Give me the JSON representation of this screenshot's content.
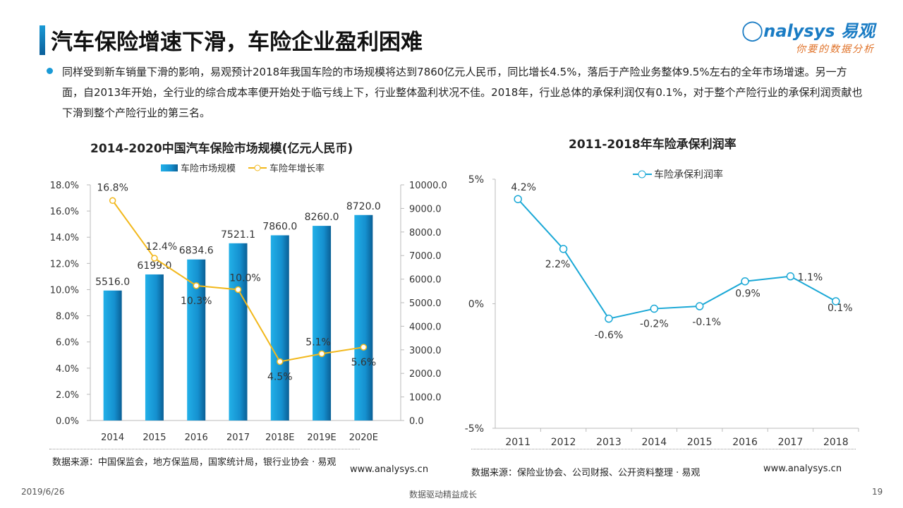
{
  "header": {
    "title": "汽车保险增速下滑，车险企业盈利困难",
    "logo_text": "nalysys 易观",
    "logo_slogan": "你要的数据分析",
    "logo_brand_color": "#1a7cc4"
  },
  "body_text": "同样受到新车销量下滑的影响，易观预计2018年我国车险的市场规模将达到7860亿元人民币，同比增长4.5%，落后于产险业务整体9.5%左右的全年市场增速。另一方面，自2013年开始，全行业的综合成本率便开始处于临亏线上下，行业整体盈利状况不佳。2018年，行业总体的承保利润仅有0.1%，对于整个产险行业的承保利润贡献也下滑到整个产险行业的第三名。",
  "chart_data": [
    {
      "type": "bar+line",
      "title": "2014-2020中国汽车保险市场规模(亿元人民币)",
      "categories": [
        "2014",
        "2015",
        "2016",
        "2017",
        "2018E",
        "2019E",
        "2020E"
      ],
      "series": [
        {
          "name": "车险市场规模",
          "type": "bar",
          "axis": "right",
          "values": [
            5516.0,
            6199.0,
            6834.6,
            7521.1,
            7860.0,
            8260.0,
            8720.0
          ],
          "labels": [
            "5516.0",
            "6199.0",
            "6834.6",
            "7521.1",
            "7860.0",
            "8260.0",
            "8720.0"
          ],
          "color": "#1a9ad6"
        },
        {
          "name": "车险年增长率",
          "type": "line",
          "axis": "left",
          "values": [
            16.8,
            12.4,
            10.3,
            10.0,
            4.5,
            5.1,
            5.6
          ],
          "labels": [
            "16.8%",
            "12.4%",
            "10.3%",
            "10.0%",
            "4.5%",
            "5.1%",
            "5.6%"
          ],
          "color": "#f2b81c"
        }
      ],
      "left_axis": {
        "ylim": [
          0,
          18
        ],
        "ticks": [
          "0.0%",
          "2.0%",
          "4.0%",
          "6.0%",
          "8.0%",
          "10.0%",
          "12.0%",
          "14.0%",
          "16.0%",
          "18.0%"
        ]
      },
      "right_axis": {
        "ylim": [
          0,
          10000
        ],
        "ticks": [
          "0.0",
          "1000.0",
          "2000.0",
          "3000.0",
          "4000.0",
          "5000.0",
          "6000.0",
          "7000.0",
          "8000.0",
          "9000.0",
          "10000.0"
        ]
      },
      "legend": "top",
      "grid": false,
      "source": "数据来源：中国保监会，地方保监局，国家统计局，银行业协会 · 易观",
      "site": "www.analysys.cn"
    },
    {
      "type": "line",
      "title": "2011-2018年车险承保利润率",
      "categories": [
        "2011",
        "2012",
        "2013",
        "2014",
        "2015",
        "2016",
        "2017",
        "2018"
      ],
      "series": [
        {
          "name": "车险承保利润率",
          "values": [
            4.2,
            2.2,
            -0.6,
            -0.2,
            -0.1,
            0.9,
            1.1,
            0.1
          ],
          "labels": [
            "4.2%",
            "2.2%",
            "-0.6%",
            "-0.2%",
            "-0.1%",
            "0.9%",
            "1.1%",
            "0.1%"
          ],
          "color": "#1aa8d6"
        }
      ],
      "ylim": [
        -5,
        5
      ],
      "ticks": [
        "-5%",
        "0%",
        "5%"
      ],
      "legend": "top",
      "grid": false,
      "source": "数据来源：保险业协会、公司财报、公开资料整理 · 易观",
      "site": "www.analysys.cn"
    }
  ],
  "footer": {
    "date": "2019/6/26",
    "slogan": "数据驱动精益成长",
    "page": "19"
  }
}
